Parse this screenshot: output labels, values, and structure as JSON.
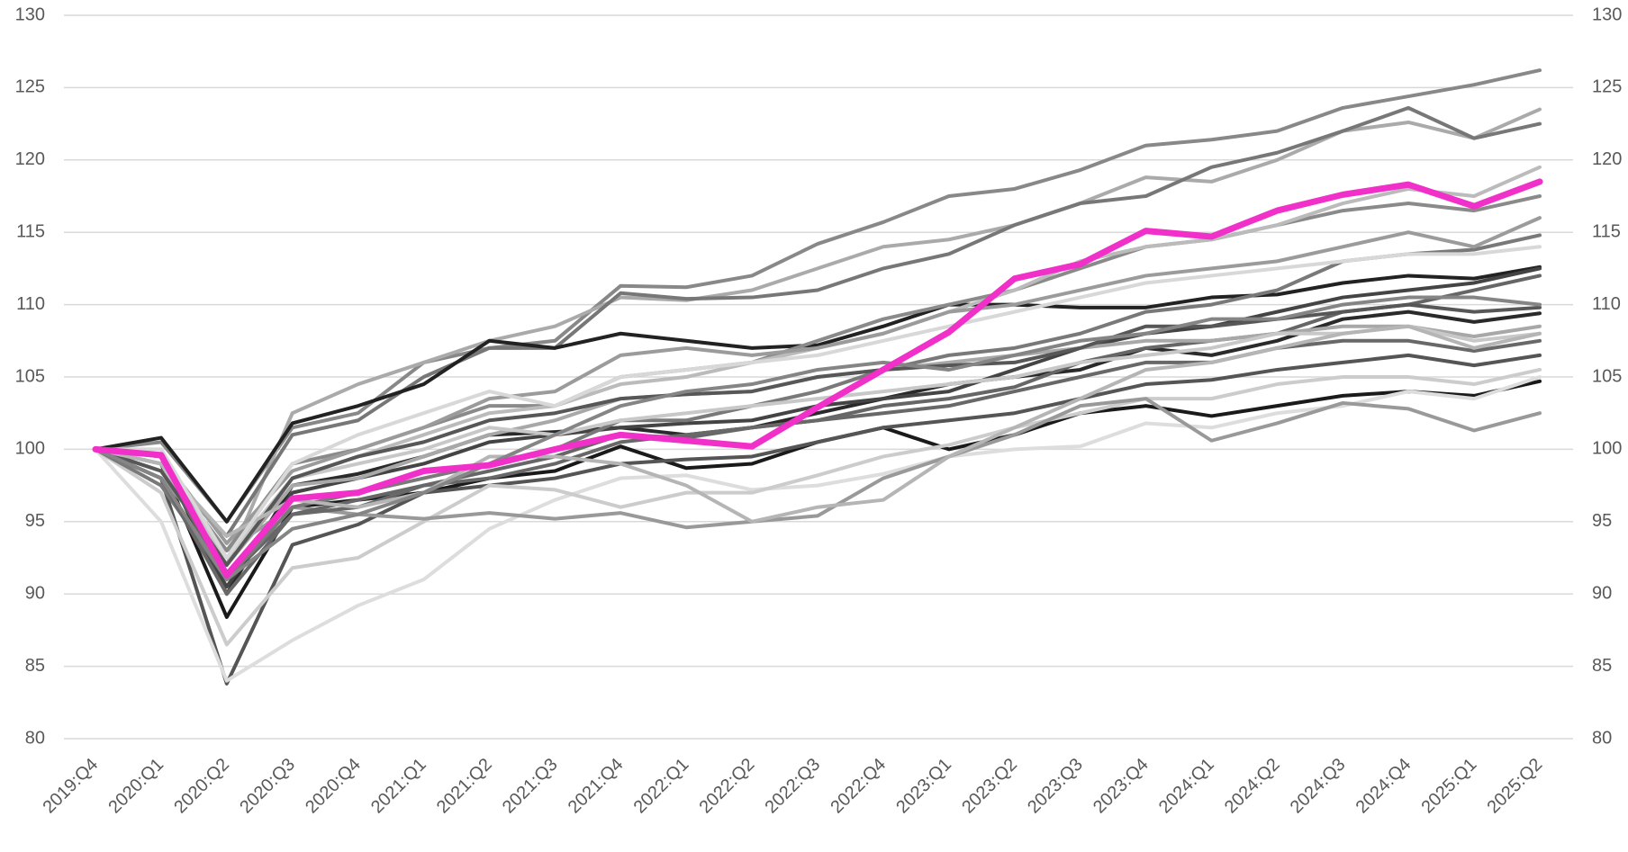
{
  "chart_data": {
    "type": "line",
    "categories": [
      "2019:Q4",
      "2020:Q1",
      "2020:Q2",
      "2020:Q3",
      "2020:Q4",
      "2021:Q1",
      "2021:Q2",
      "2021:Q3",
      "2021:Q4",
      "2022:Q1",
      "2022:Q2",
      "2022:Q3",
      "2022:Q4",
      "2023:Q1",
      "2023:Q2",
      "2023:Q3",
      "2023:Q4",
      "2024:Q1",
      "2024:Q2",
      "2024:Q3",
      "2024:Q4",
      "2025:Q1",
      "2025:Q2"
    ],
    "ylim": [
      80,
      130
    ],
    "yticks": [
      80,
      85,
      90,
      95,
      100,
      105,
      110,
      115,
      120,
      125,
      130
    ],
    "y2lim": [
      80,
      130
    ],
    "y2ticks": [
      80,
      85,
      90,
      95,
      100,
      105,
      110,
      115,
      120,
      125,
      130
    ],
    "grid": true,
    "series": [
      {
        "color": "#888888",
        "values": [
          100,
          100.5,
          95,
          101.5,
          102.5,
          106,
          107,
          107.5,
          111.3,
          111.2,
          112,
          114.2,
          115.7,
          117.5,
          118,
          119.3,
          121,
          121.4,
          122,
          123.6,
          124.4,
          125.2,
          126.2
        ]
      },
      {
        "color": "#aaaaaa",
        "values": [
          100,
          99,
          92,
          102.5,
          104.5,
          106,
          107.5,
          108.5,
          110.5,
          110.3,
          111,
          112.5,
          114,
          114.5,
          115.5,
          117,
          118.8,
          118.5,
          120,
          122,
          122.6,
          121.5,
          123.5
        ]
      },
      {
        "color": "#777777",
        "values": [
          100,
          98.5,
          94,
          101,
          102,
          105,
          107,
          107,
          110.8,
          110.4,
          110.5,
          111,
          112.5,
          113.5,
          115.5,
          117,
          117.5,
          119.5,
          120.5,
          122,
          123.6,
          121.5,
          122.5
        ]
      },
      {
        "color": "#222222",
        "values": [
          100,
          100.8,
          95,
          101.8,
          103,
          104.5,
          107.5,
          107,
          108,
          107.5,
          107,
          107.2,
          108.5,
          110,
          110,
          109.8,
          109.8,
          110.5,
          110.7,
          111.5,
          112,
          111.8,
          112.6
        ]
      },
      {
        "color": "#1a1a1a",
        "values": [
          100,
          99,
          88.4,
          96,
          96.5,
          97,
          98,
          98.5,
          100.2,
          98.7,
          99,
          100.5,
          101.5,
          100,
          101,
          102.5,
          103,
          102.3,
          103,
          103.7,
          104,
          103.7,
          104.7
        ]
      },
      {
        "color": "#2a2a2a",
        "values": [
          100,
          99.5,
          90,
          97.5,
          98.3,
          99.5,
          101,
          101.2,
          101.5,
          101,
          101.5,
          102.5,
          103.5,
          104.5,
          105,
          105.5,
          107,
          106.5,
          107.5,
          109,
          109.5,
          108.8,
          109.4
        ]
      },
      {
        "color": "#555555",
        "values": [
          100,
          98,
          83.8,
          93.4,
          94.8,
          97,
          97.5,
          98,
          99,
          99.3,
          99.5,
          100.5,
          101.5,
          102,
          102.5,
          103.5,
          104.5,
          104.8,
          105.5,
          106,
          106.5,
          105.8,
          106.5
        ]
      },
      {
        "color": "#dddddd",
        "values": [
          100,
          95,
          84,
          86.8,
          89.2,
          91,
          94.5,
          96.5,
          98,
          98.2,
          97.2,
          97.5,
          98.3,
          99.5,
          100,
          100.2,
          101.8,
          101.5,
          102.5,
          103,
          104,
          103.5,
          105
        ]
      },
      {
        "color": "#cccccc",
        "values": [
          100,
          97,
          86.5,
          91.8,
          92.5,
          95,
          97.5,
          97.2,
          96,
          97,
          97,
          98.2,
          99.5,
          100.3,
          101.5,
          102.5,
          103.5,
          103.5,
          104.5,
          105,
          105,
          104.5,
          105.5
        ]
      },
      {
        "color": "#999999",
        "values": [
          100,
          98,
          93,
          96,
          95.5,
          95.2,
          95.6,
          95.2,
          95.6,
          94.6,
          95,
          95.4,
          98,
          99.5,
          101,
          103,
          103.5,
          100.6,
          101.8,
          103.2,
          102.8,
          101.3,
          102.5
        ]
      },
      {
        "color": "#666666",
        "values": [
          100,
          99,
          91,
          95.5,
          96.5,
          97.5,
          98.5,
          99.5,
          101,
          100.8,
          101.5,
          102,
          103,
          103.5,
          104.3,
          106,
          107,
          107.5,
          108,
          109.5,
          110,
          111,
          112
        ]
      },
      {
        "color": "#444444",
        "values": [
          100,
          98,
          90.5,
          97,
          98,
          99,
          100.5,
          101,
          101.5,
          101.8,
          102,
          103,
          103.5,
          104,
          105.5,
          107,
          108,
          108.5,
          109.5,
          110.5,
          111,
          111.5,
          112.5
        ]
      },
      {
        "color": "#8a8a8a",
        "values": [
          100,
          99,
          93,
          99,
          100,
          101.5,
          103,
          103,
          105,
          105.5,
          106,
          107.5,
          109,
          110,
          111,
          112.5,
          114,
          114.5,
          115.5,
          116.5,
          117,
          116.5,
          117.5
        ]
      },
      {
        "color": "#bbbbbb",
        "values": [
          100,
          98.5,
          92,
          98,
          99.5,
          101,
          102.5,
          103,
          104.5,
          105,
          106,
          107,
          108,
          109.5,
          111,
          113,
          114,
          114.5,
          115.5,
          117,
          118,
          117.5,
          119.5
        ]
      },
      {
        "color": "#797979",
        "values": [
          100,
          97.5,
          91,
          96,
          97,
          98,
          99,
          100,
          102,
          102,
          103,
          104,
          105.5,
          106.5,
          107,
          108,
          109.5,
          110,
          111,
          113,
          113.5,
          113.8,
          114.8
        ]
      },
      {
        "color": "#a8a8a8",
        "values": [
          100,
          99,
          92,
          97.5,
          98,
          99.5,
          101,
          102,
          103.5,
          103.8,
          104,
          105,
          105.5,
          106,
          106.5,
          107,
          107.5,
          107.5,
          108,
          108.5,
          108.5,
          107.8,
          108.5
        ]
      },
      {
        "color": "#686868",
        "values": [
          100,
          98,
          90,
          95.5,
          96,
          97.5,
          98,
          99,
          100.5,
          101,
          101.5,
          102,
          102.5,
          103,
          104,
          105,
          106,
          106,
          107,
          107.5,
          107.5,
          106.8,
          107.5
        ]
      },
      {
        "color": "#9b9b9b",
        "values": [
          100,
          99.5,
          93.5,
          98.5,
          100,
          101.5,
          103.5,
          104,
          106.5,
          107,
          106.5,
          107,
          108,
          109.5,
          110,
          111,
          112,
          112.5,
          113,
          114,
          115,
          114,
          116
        ]
      },
      {
        "color": "#c8c8c8",
        "values": [
          100,
          99,
          92.5,
          98,
          99,
          100,
          101.5,
          101,
          102,
          102.5,
          103,
          103.5,
          104,
          104.5,
          105,
          106,
          106.5,
          107,
          108,
          108,
          108.5,
          107.5,
          108
        ]
      },
      {
        "color": "#575757",
        "values": [
          100,
          98.5,
          92,
          98,
          99.5,
          100.5,
          102,
          102.5,
          103.5,
          103.8,
          104,
          105,
          105.5,
          105.8,
          106,
          107,
          108.5,
          108.5,
          109,
          109.5,
          110,
          109.5,
          109.8
        ]
      },
      {
        "color": "#b5b5b5",
        "values": [
          100,
          99,
          94,
          96.5,
          96,
          97,
          99.5,
          99.5,
          99,
          97.5,
          95,
          96,
          96.5,
          99.5,
          101.5,
          103.5,
          105.5,
          106,
          107,
          108,
          108.5,
          107,
          108
        ]
      },
      {
        "color": "#858585",
        "values": [
          100,
          98,
          91,
          94.5,
          95.5,
          97,
          99,
          101,
          103,
          104,
          104.5,
          105.5,
          106,
          105.5,
          106.5,
          107.5,
          108,
          109,
          109,
          110,
          110.5,
          110.5,
          110
        ]
      },
      {
        "color": "#d8d8d8",
        "values": [
          100,
          100,
          92.5,
          99,
          101,
          102.5,
          104,
          103,
          105,
          105.5,
          106,
          106.5,
          107.5,
          108.5,
          109.5,
          110.5,
          111.5,
          112,
          112.5,
          113,
          113.5,
          113.5,
          114
        ]
      },
      {
        "color": "#f030c8",
        "values": [
          100,
          99.6,
          91.3,
          96.6,
          97,
          98.5,
          98.9,
          100,
          101,
          100.6,
          100.2,
          102.9,
          105.5,
          108.1,
          111.8,
          112.8,
          115.1,
          114.7,
          116.5,
          117.6,
          118.3,
          116.8,
          118.5
        ]
      }
    ]
  }
}
